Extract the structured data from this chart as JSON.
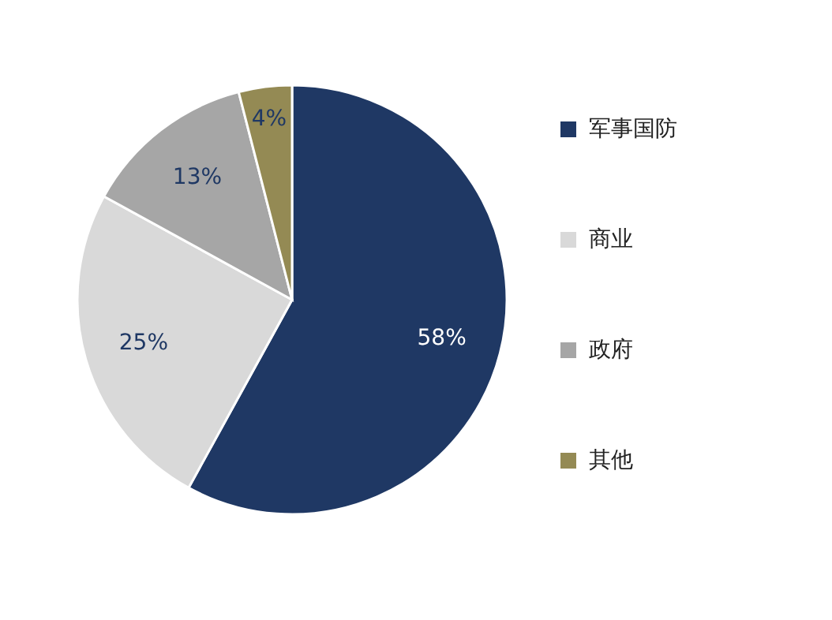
{
  "chart_data": {
    "type": "pie",
    "categories": [
      "军事国防",
      "商业",
      "政府",
      "其他"
    ],
    "values": [
      58,
      25,
      13,
      4
    ],
    "colors": [
      "#1f3864",
      "#d9d9d9",
      "#a6a6a6",
      "#948a54"
    ],
    "value_labels": [
      "58%",
      "25%",
      "13%",
      "4%"
    ],
    "legend": "right"
  }
}
